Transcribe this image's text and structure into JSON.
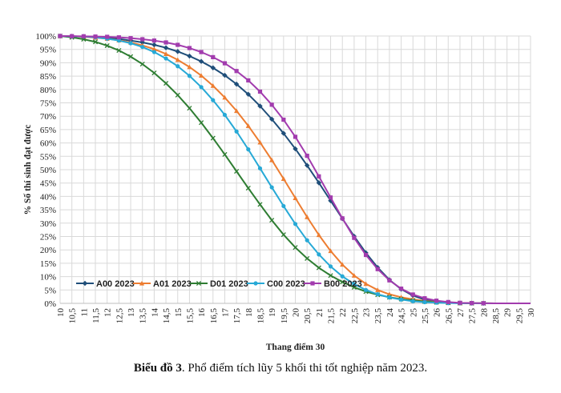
{
  "caption": {
    "label": "Biểu đồ 3",
    "text": ". Phổ điểm tích lũy 5 khối thi tốt nghiệp năm 2023."
  },
  "chart_data": {
    "type": "line",
    "title": "",
    "xlabel": "Thang điểm 30",
    "ylabel": "% Số thí sinh đạt được",
    "xlim": [
      10,
      30
    ],
    "ylim": [
      0,
      100
    ],
    "x_ticks": [
      "10",
      "10,5",
      "11",
      "11,5",
      "12",
      "12,5",
      "13",
      "13,5",
      "14",
      "14,5",
      "15",
      "15,5",
      "16",
      "16,5",
      "17",
      "17,5",
      "18",
      "18,5",
      "19",
      "19,5",
      "20",
      "20,5",
      "21",
      "21,5",
      "22",
      "22,5",
      "23",
      "23,5",
      "24",
      "24,5",
      "25",
      "25,5",
      "26",
      "26,5",
      "27",
      "27,5",
      "28",
      "28,5",
      "29",
      "29,5",
      "30"
    ],
    "y_ticks": [
      "0%",
      "5%",
      "10%",
      "15%",
      "20%",
      "25%",
      "30%",
      "35%",
      "40%",
      "45%",
      "50%",
      "55%",
      "60%",
      "65%",
      "70%",
      "75%",
      "80%",
      "85%",
      "90%",
      "95%",
      "100%"
    ],
    "grid": true,
    "legend_position": "bottom-left",
    "x": [
      10,
      10.5,
      11,
      11.5,
      12,
      12.5,
      13,
      13.5,
      14,
      14.5,
      15,
      15.5,
      16,
      16.5,
      17,
      17.5,
      18,
      18.5,
      19,
      19.5,
      20,
      20.5,
      21,
      21.5,
      22,
      22.5,
      23,
      23.5,
      24,
      24.5,
      25,
      25.5,
      26,
      26.5,
      27,
      27.5,
      28,
      28.5,
      29,
      29.5,
      30
    ],
    "series": [
      {
        "name": "A00 2023",
        "color": "#1f4e79",
        "marker": "diamond",
        "values": [
          100,
          99.9,
          99.8,
          99.6,
          99.3,
          98.9,
          98.3,
          97.6,
          96.7,
          95.6,
          94.2,
          92.5,
          90.5,
          88.1,
          85.3,
          82.0,
          78.2,
          73.8,
          68.9,
          63.6,
          57.8,
          51.6,
          45.1,
          38.4,
          31.7,
          25.1,
          18.9,
          13.4,
          8.8,
          5.3,
          2.9,
          1.4,
          0.6,
          0.25,
          0.1,
          0.05,
          0.02,
          0,
          0,
          0,
          0
        ]
      },
      {
        "name": "A01 2023",
        "color": "#ed7d31",
        "marker": "triangle",
        "values": [
          100,
          99.9,
          99.7,
          99.4,
          99.0,
          98.4,
          97.6,
          96.5,
          95.1,
          93.3,
          91.1,
          88.4,
          85.2,
          81.4,
          77.0,
          72.0,
          66.4,
          60.2,
          53.6,
          46.6,
          39.4,
          32.3,
          25.6,
          19.6,
          14.5,
          10.4,
          7.3,
          5.0,
          3.4,
          2.3,
          1.5,
          0.9,
          0.5,
          0.25,
          0.1,
          0.05,
          0.02,
          0,
          0,
          0,
          0
        ]
      },
      {
        "name": "D01 2023",
        "color": "#2e7d32",
        "marker": "cross",
        "values": [
          100,
          99.5,
          98.8,
          97.8,
          96.4,
          94.6,
          92.3,
          89.5,
          86.2,
          82.3,
          77.9,
          73.0,
          67.6,
          61.8,
          55.7,
          49.4,
          43.1,
          37.0,
          31.1,
          25.7,
          20.9,
          16.8,
          13.3,
          10.4,
          8.0,
          6.0,
          4.4,
          3.2,
          2.3,
          1.6,
          1.1,
          0.7,
          0.4,
          0.2,
          0.1,
          0.05,
          0.02,
          0,
          0,
          0,
          0
        ]
      },
      {
        "name": "C00 2023",
        "color": "#27a9d6",
        "marker": "circle",
        "values": [
          100,
          99.9,
          99.8,
          99.5,
          99.0,
          98.3,
          97.3,
          95.9,
          94.0,
          91.6,
          88.7,
          85.1,
          80.9,
          76.0,
          70.5,
          64.3,
          57.6,
          50.5,
          43.4,
          36.4,
          29.7,
          23.6,
          18.3,
          13.8,
          10.1,
          7.2,
          5.0,
          3.4,
          2.2,
          1.4,
          0.8,
          0.45,
          0.25,
          0.1,
          0.05,
          0.02,
          0,
          0,
          0,
          0,
          0
        ]
      },
      {
        "name": "B00 2023",
        "color": "#a23cae",
        "marker": "square",
        "values": [
          100,
          99.95,
          99.9,
          99.8,
          99.7,
          99.5,
          99.2,
          98.8,
          98.3,
          97.6,
          96.7,
          95.5,
          94.0,
          92.1,
          89.8,
          86.9,
          83.4,
          79.2,
          74.3,
          68.7,
          62.3,
          55.2,
          47.5,
          39.6,
          31.8,
          24.5,
          18.1,
          12.8,
          8.6,
          5.5,
          3.3,
          1.9,
          1.0,
          0.5,
          0.2,
          0.1,
          0.05,
          0,
          0,
          0,
          0
        ]
      }
    ]
  }
}
